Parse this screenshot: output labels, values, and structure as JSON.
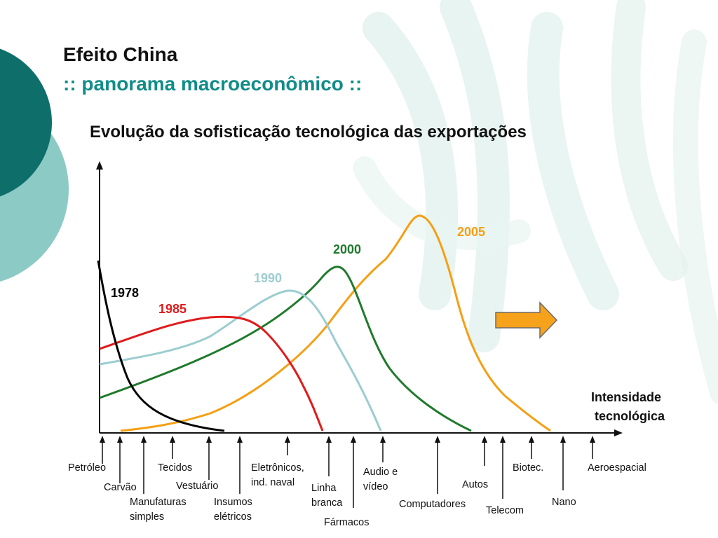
{
  "slide": {
    "title": "Efeito China",
    "subtitle": ":: panorama macroeconômico ::"
  },
  "colors": {
    "teal_dark": "#0d6e6a",
    "teal_light": "#8ccac6",
    "swirl": "#dcefea",
    "arrow_fill": "#f7a21b",
    "arrow_stroke": "#6b6b6b"
  },
  "chart_data": {
    "type": "line",
    "title": "Evolução da sofisticação tecnológica das exportações",
    "xlabel_lines": [
      "Intensidade",
      "tecnológica"
    ],
    "ylabel": "",
    "grid": false,
    "categories": [
      {
        "lines": [
          "Petróleo"
        ]
      },
      {
        "lines": [
          "Carvão"
        ]
      },
      {
        "lines": [
          "Manufaturas",
          "simples"
        ]
      },
      {
        "lines": [
          "Tecidos"
        ]
      },
      {
        "lines": [
          "Vestuário"
        ]
      },
      {
        "lines": [
          "Insumos",
          "elétricos"
        ]
      },
      {
        "lines": [
          "Eletrônicos,",
          "ind. naval"
        ]
      },
      {
        "lines": [
          "Linha",
          "branca"
        ]
      },
      {
        "lines": [
          "Fármacos"
        ]
      },
      {
        "lines": [
          "Audio e",
          "vídeo"
        ]
      },
      {
        "lines": [
          "Computadores"
        ]
      },
      {
        "lines": [
          "Autos"
        ]
      },
      {
        "lines": [
          "Telecom"
        ]
      },
      {
        "lines": [
          "Biotec."
        ]
      },
      {
        "lines": [
          "Nano"
        ]
      },
      {
        "lines": [
          "Aeroespacial"
        ]
      }
    ],
    "series": [
      {
        "name": "1978",
        "color": "#000000"
      },
      {
        "name": "1985",
        "color": "#e01b1b"
      },
      {
        "name": "1990",
        "color": "#9ccdd0"
      },
      {
        "name": "2000",
        "color": "#1f7a2c"
      },
      {
        "name": "2005",
        "color": "#f59f13"
      }
    ]
  }
}
